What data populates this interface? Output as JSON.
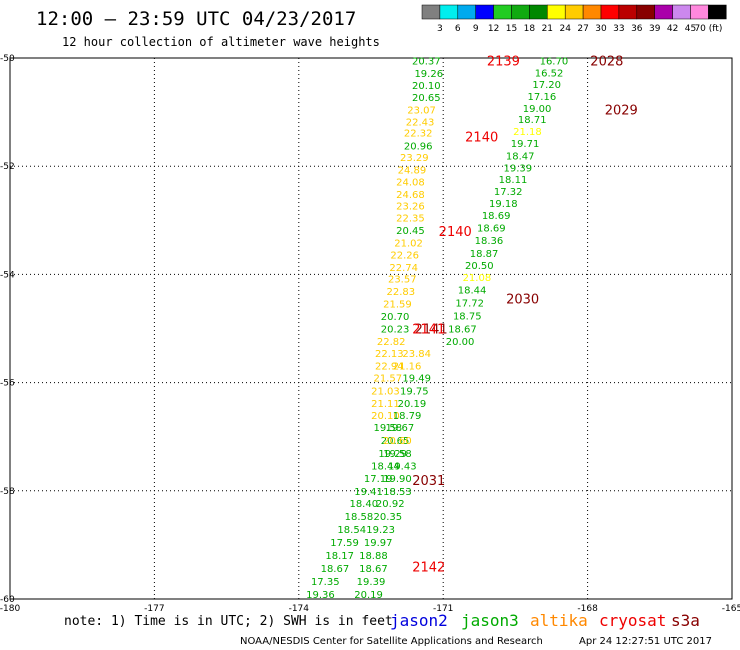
{
  "header": {
    "title": "12:00 — 23:59 UTC 04/23/2017",
    "subtitle": "12 hour collection of altimeter wave heights"
  },
  "color_scale": {
    "labels": [
      "3",
      "6",
      "9",
      "12",
      "15",
      "18",
      "21",
      "24",
      "27",
      "30",
      "33",
      "36",
      "39",
      "42",
      "45",
      "70 (ft)"
    ],
    "colors": [
      "#808080",
      "#00eeee",
      "#00aaee",
      "#0000ff",
      "#22cc22",
      "#11aa11",
      "#008800",
      "#ffff00",
      "#ffcc00",
      "#ff8800",
      "#ff0000",
      "#bb0000",
      "#880000",
      "#aa00aa",
      "#cc88ee",
      "#ff88dd",
      "#000000"
    ]
  },
  "footer": {
    "note": "note: 1) Time is in UTC; 2) SWH is in feet",
    "credit": "NOAA/NESDIS Center for Satellite Applications and Research",
    "timestamp": "Apr 24 12:27:51 UTC 2017"
  },
  "legend": {
    "satellites": [
      {
        "name": "jason2",
        "color": "#0000dd"
      },
      {
        "name": "jason3",
        "color": "#00aa00"
      },
      {
        "name": "altika",
        "color": "#ff8800"
      },
      {
        "name": "cryosat",
        "color": "#ee0000"
      },
      {
        "name": "s3a",
        "color": "#880000"
      }
    ]
  },
  "chart_data": {
    "type": "scatter",
    "xlim": [
      -180,
      -165
    ],
    "ylim": [
      -60,
      -50
    ],
    "x_ticks": [
      "-180",
      "-177",
      "-174",
      "-171",
      "-168",
      "-165"
    ],
    "y_ticks": [
      "-50",
      "-52",
      "-54",
      "-56",
      "-58",
      "-60"
    ],
    "grid": true,
    "legend_position": "bottom",
    "points": [
      {
        "x": -171.35,
        "y": -50.05,
        "value": "20.37",
        "color": "#00aa00"
      },
      {
        "x": -171.3,
        "y": -50.28,
        "value": "19.26",
        "color": "#00aa00"
      },
      {
        "x": -171.35,
        "y": -50.5,
        "value": "20.10",
        "color": "#00aa00"
      },
      {
        "x": -171.35,
        "y": -50.72,
        "value": "20.65",
        "color": "#00aa00"
      },
      {
        "x": -171.45,
        "y": -50.95,
        "value": "23.07",
        "color": "#ffcc00"
      },
      {
        "x": -171.48,
        "y": -51.17,
        "value": "22.43",
        "color": "#ffcc00"
      },
      {
        "x": -171.52,
        "y": -51.38,
        "value": "22.32",
        "color": "#ffcc00"
      },
      {
        "x": -171.52,
        "y": -51.62,
        "value": "20.96",
        "color": "#00aa00"
      },
      {
        "x": -171.6,
        "y": -51.83,
        "value": "23.29",
        "color": "#ffcc00"
      },
      {
        "x": -171.65,
        "y": -52.06,
        "value": "24.89",
        "color": "#ffcc00"
      },
      {
        "x": -171.68,
        "y": -52.28,
        "value": "24.08",
        "color": "#ffcc00"
      },
      {
        "x": -171.68,
        "y": -52.51,
        "value": "24.68",
        "color": "#ffcc00"
      },
      {
        "x": -171.68,
        "y": -52.73,
        "value": "23.26",
        "color": "#ffcc00"
      },
      {
        "x": -171.68,
        "y": -52.95,
        "value": "22.35",
        "color": "#ffcc00"
      },
      {
        "x": -171.68,
        "y": -53.18,
        "value": "20.45",
        "color": "#00aa00"
      },
      {
        "x": -171.72,
        "y": -53.41,
        "value": "21.02",
        "color": "#ffcc00"
      },
      {
        "x": -171.8,
        "y": -53.63,
        "value": "22.26",
        "color": "#ffcc00"
      },
      {
        "x": -171.82,
        "y": -53.86,
        "value": "22.74",
        "color": "#ffcc00"
      },
      {
        "x": -171.85,
        "y": -54.08,
        "value": "23.57",
        "color": "#ffcc00"
      },
      {
        "x": -171.88,
        "y": -54.31,
        "value": "22.83",
        "color": "#ffcc00"
      },
      {
        "x": -171.95,
        "y": -54.54,
        "value": "21.59",
        "color": "#ffcc00"
      },
      {
        "x": -172.0,
        "y": -54.77,
        "value": "20.70",
        "color": "#00aa00"
      },
      {
        "x": -172.0,
        "y": -55.0,
        "value": "20.23",
        "color": "#00aa00"
      },
      {
        "x": -172.08,
        "y": -55.23,
        "value": "22.82",
        "color": "#ffcc00"
      },
      {
        "x": -172.12,
        "y": -55.45,
        "value": "22.13",
        "color": "#ffcc00"
      },
      {
        "x": -171.55,
        "y": -55.45,
        "value": "23.84",
        "color": "#ffcc00"
      },
      {
        "x": -172.12,
        "y": -55.68,
        "value": "22.94",
        "color": "#ffcc00"
      },
      {
        "x": -171.75,
        "y": -55.68,
        "value": "21.16",
        "color": "#ffcc00"
      },
      {
        "x": -172.15,
        "y": -55.91,
        "value": "21.57",
        "color": "#ffcc00"
      },
      {
        "x": -171.55,
        "y": -55.91,
        "value": "19.49",
        "color": "#00aa00"
      },
      {
        "x": -172.2,
        "y": -56.15,
        "value": "21.03",
        "color": "#ffcc00"
      },
      {
        "x": -171.6,
        "y": -56.15,
        "value": "19.75",
        "color": "#00aa00"
      },
      {
        "x": -172.2,
        "y": -56.38,
        "value": "21.11",
        "color": "#ffcc00"
      },
      {
        "x": -171.65,
        "y": -56.38,
        "value": "20.19",
        "color": "#00aa00"
      },
      {
        "x": -172.2,
        "y": -56.6,
        "value": "20.10",
        "color": "#ffcc00"
      },
      {
        "x": -171.75,
        "y": -56.6,
        "value": "18.79",
        "color": "#00aa00"
      },
      {
        "x": -172.15,
        "y": -56.82,
        "value": "19.58",
        "color": "#00aa00"
      },
      {
        "x": -171.9,
        "y": -56.82,
        "value": "19.67",
        "color": "#00aa00"
      },
      {
        "x": -172.0,
        "y": -57.06,
        "value": "20.65",
        "color": "#00aa00"
      },
      {
        "x": -171.95,
        "y": -57.06,
        "value": "20.60",
        "color": "#ffcc00"
      },
      {
        "x": -172.05,
        "y": -57.3,
        "value": "19.29",
        "color": "#00aa00"
      },
      {
        "x": -171.95,
        "y": -57.3,
        "value": "19.58",
        "color": "#00aa00"
      },
      {
        "x": -172.2,
        "y": -57.53,
        "value": "18.44",
        "color": "#00aa00"
      },
      {
        "x": -171.85,
        "y": -57.53,
        "value": "19.43",
        "color": "#00aa00"
      },
      {
        "x": -172.35,
        "y": -57.76,
        "value": "17.19",
        "color": "#00aa00"
      },
      {
        "x": -171.95,
        "y": -57.76,
        "value": "19.90",
        "color": "#00aa00"
      },
      {
        "x": -172.55,
        "y": -58.0,
        "value": "19.41",
        "color": "#00aa00"
      },
      {
        "x": -171.95,
        "y": -58.0,
        "value": "18.53",
        "color": "#00aa00"
      },
      {
        "x": -172.65,
        "y": -58.23,
        "value": "18.40",
        "color": "#00aa00"
      },
      {
        "x": -172.1,
        "y": -58.23,
        "value": "20.92",
        "color": "#00aa00"
      },
      {
        "x": -172.75,
        "y": -58.47,
        "value": "18.58",
        "color": "#00aa00"
      },
      {
        "x": -172.15,
        "y": -58.47,
        "value": "20.35",
        "color": "#00aa00"
      },
      {
        "x": -172.9,
        "y": -58.71,
        "value": "18.54",
        "color": "#00aa00"
      },
      {
        "x": -172.3,
        "y": -58.71,
        "value": "19.23",
        "color": "#00aa00"
      },
      {
        "x": -173.05,
        "y": -58.95,
        "value": "17.59",
        "color": "#00aa00"
      },
      {
        "x": -172.35,
        "y": -58.95,
        "value": "19.97",
        "color": "#00aa00"
      },
      {
        "x": -173.15,
        "y": -59.19,
        "value": "18.17",
        "color": "#00aa00"
      },
      {
        "x": -172.45,
        "y": -59.19,
        "value": "18.88",
        "color": "#00aa00"
      },
      {
        "x": -173.25,
        "y": -59.43,
        "value": "18.67",
        "color": "#00aa00"
      },
      {
        "x": -172.45,
        "y": -59.43,
        "value": "18.67",
        "color": "#00aa00"
      },
      {
        "x": -173.45,
        "y": -59.67,
        "value": "17.35",
        "color": "#00aa00"
      },
      {
        "x": -172.5,
        "y": -59.67,
        "value": "19.39",
        "color": "#00aa00"
      },
      {
        "x": -173.55,
        "y": -59.91,
        "value": "19.36",
        "color": "#00aa00"
      },
      {
        "x": -172.55,
        "y": -59.91,
        "value": "20.19",
        "color": "#00aa00"
      },
      {
        "x": -168.7,
        "y": -50.05,
        "value": "16.70",
        "color": "#00aa00"
      },
      {
        "x": -168.8,
        "y": -50.27,
        "value": "16.52",
        "color": "#00aa00"
      },
      {
        "x": -168.85,
        "y": -50.48,
        "value": "17.20",
        "color": "#00aa00"
      },
      {
        "x": -168.95,
        "y": -50.7,
        "value": "17.16",
        "color": "#00aa00"
      },
      {
        "x": -169.05,
        "y": -50.92,
        "value": "19.00",
        "color": "#00aa00"
      },
      {
        "x": -169.15,
        "y": -51.13,
        "value": "18.71",
        "color": "#00aa00"
      },
      {
        "x": -169.25,
        "y": -51.35,
        "value": "21.18",
        "color": "#ffff00"
      },
      {
        "x": -169.3,
        "y": -51.57,
        "value": "19.71",
        "color": "#00aa00"
      },
      {
        "x": -169.4,
        "y": -51.8,
        "value": "18.47",
        "color": "#00aa00"
      },
      {
        "x": -169.45,
        "y": -52.02,
        "value": "19.39",
        "color": "#00aa00"
      },
      {
        "x": -169.55,
        "y": -52.24,
        "value": "18.11",
        "color": "#00aa00"
      },
      {
        "x": -169.65,
        "y": -52.46,
        "value": "17.32",
        "color": "#00aa00"
      },
      {
        "x": -169.75,
        "y": -52.68,
        "value": "19.18",
        "color": "#00aa00"
      },
      {
        "x": -169.9,
        "y": -52.9,
        "value": "18.69",
        "color": "#00aa00"
      },
      {
        "x": -170.0,
        "y": -53.13,
        "value": "18.69",
        "color": "#00aa00"
      },
      {
        "x": -170.05,
        "y": -53.36,
        "value": "18.36",
        "color": "#00aa00"
      },
      {
        "x": -170.15,
        "y": -53.6,
        "value": "18.87",
        "color": "#00aa00"
      },
      {
        "x": -170.25,
        "y": -53.83,
        "value": "20.50",
        "color": "#00aa00"
      },
      {
        "x": -170.3,
        "y": -54.05,
        "value": "21.08",
        "color": "#ffff00"
      },
      {
        "x": -170.4,
        "y": -54.28,
        "value": "18.44",
        "color": "#00aa00"
      },
      {
        "x": -170.45,
        "y": -54.52,
        "value": "17.72",
        "color": "#00aa00"
      },
      {
        "x": -170.5,
        "y": -54.76,
        "value": "18.75",
        "color": "#00aa00"
      },
      {
        "x": -170.6,
        "y": -55.0,
        "value": "18.67",
        "color": "#00aa00"
      },
      {
        "x": -170.65,
        "y": -55.23,
        "value": "20.00",
        "color": "#00aa00"
      }
    ],
    "pass_labels": [
      {
        "x": -169.75,
        "y": -50.05,
        "text": "2139",
        "color": "#ee0000"
      },
      {
        "x": -167.6,
        "y": -50.05,
        "text": "2028",
        "color": "#880000"
      },
      {
        "x": -167.3,
        "y": -50.95,
        "text": "2029",
        "color": "#880000"
      },
      {
        "x": -170.2,
        "y": -51.45,
        "text": "2140",
        "color": "#ee0000"
      },
      {
        "x": -170.75,
        "y": -53.2,
        "text": "2140",
        "color": "#ee0000"
      },
      {
        "x": -169.35,
        "y": -54.45,
        "text": "2030",
        "color": "#880000"
      },
      {
        "x": -171.25,
        "y": -55.0,
        "text": "2141",
        "color": "#880000"
      },
      {
        "x": -171.3,
        "y": -55.0,
        "text": "2141",
        "color": "#ee0000"
      },
      {
        "x": -171.3,
        "y": -57.8,
        "text": "2031",
        "color": "#880000"
      },
      {
        "x": -171.3,
        "y": -59.4,
        "text": "2142",
        "color": "#ee0000"
      }
    ]
  }
}
